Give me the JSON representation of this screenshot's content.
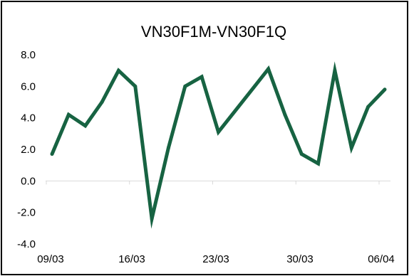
{
  "chart_data": {
    "type": "line",
    "title": "VN30F1M-VN30F1Q",
    "xlabel": "",
    "ylabel": "",
    "ylim": [
      -4.0,
      8.0
    ],
    "y_ticks": [
      "8.0",
      "6.0",
      "4.0",
      "2.0",
      "0.0",
      "-2.0",
      "-4.0"
    ],
    "x_ticks": [
      "09/03",
      "16/03",
      "23/03",
      "30/03",
      "06/04"
    ],
    "grid": false,
    "legend": "none",
    "line_color": "#176342",
    "series": [
      {
        "x": [
          "09/03",
          "10/03",
          "11/03",
          "14/03",
          "15/03",
          "16/03",
          "17/03",
          "18/03",
          "21/03",
          "22/03",
          "23/03",
          "28/03",
          "29/03",
          "30/03",
          "31/03",
          "01/04",
          "04/04",
          "05/04",
          "06/04"
        ],
        "values": [
          1.7,
          4.2,
          3.5,
          5.0,
          7.0,
          6.0,
          -2.4,
          2.1,
          6.0,
          6.6,
          3.1,
          7.1,
          4.2,
          1.7,
          1.1,
          7.0,
          2.1,
          4.7,
          5.8
        ]
      }
    ]
  }
}
